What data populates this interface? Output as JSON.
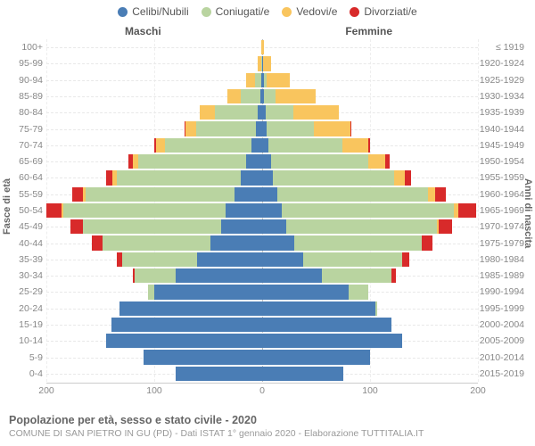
{
  "chart": {
    "type": "population-pyramid-stacked",
    "background_color": "#ffffff",
    "grid_color": "#e8e8e8",
    "center_line_color": "#bbbbbb",
    "axis_color": "#cccccc",
    "label_color": "#888888",
    "title_color": "#666666",
    "legend": [
      {
        "label": "Celibi/Nubili",
        "color": "#4a7db5"
      },
      {
        "label": "Coniugati/e",
        "color": "#b9d4a0"
      },
      {
        "label": "Vedovi/e",
        "color": "#f9c55e"
      },
      {
        "label": "Divorziati/e",
        "color": "#d82a2a"
      }
    ],
    "gender_labels": {
      "left": "Maschi",
      "right": "Femmine"
    },
    "y_axis_left_title": "Fasce di età",
    "y_axis_right_title": "Anni di nascita",
    "x_axis": {
      "max": 200,
      "ticks": [
        200,
        100,
        0,
        100,
        200
      ]
    },
    "caption_title": "Popolazione per età, sesso e stato civile - 2020",
    "caption_sub": "COMUNE DI SAN PIETRO IN GU (PD) - Dati ISTAT 1° gennaio 2020 - Elaborazione TUTTITALIA.IT",
    "age_bands": [
      "0-4",
      "5-9",
      "10-14",
      "15-19",
      "20-24",
      "25-29",
      "30-34",
      "35-39",
      "40-44",
      "45-49",
      "50-54",
      "55-59",
      "60-64",
      "65-69",
      "70-74",
      "75-79",
      "80-84",
      "85-89",
      "90-94",
      "95-99",
      "100+"
    ],
    "birth_bands": [
      "2015-2019",
      "2010-2014",
      "2005-2009",
      "2000-2004",
      "1995-1999",
      "1990-1994",
      "1985-1989",
      "1980-1984",
      "1975-1979",
      "1970-1974",
      "1965-1969",
      "1960-1964",
      "1955-1959",
      "1950-1954",
      "1945-1949",
      "1940-1944",
      "1935-1939",
      "1930-1934",
      "1925-1929",
      "1920-1924",
      "≤ 1919"
    ],
    "male": [
      {
        "single": 80,
        "married": 0,
        "widowed": 0,
        "divorced": 0
      },
      {
        "single": 110,
        "married": 0,
        "widowed": 0,
        "divorced": 0
      },
      {
        "single": 145,
        "married": 0,
        "widowed": 0,
        "divorced": 0
      },
      {
        "single": 140,
        "married": 0,
        "widowed": 0,
        "divorced": 0
      },
      {
        "single": 132,
        "married": 0,
        "widowed": 0,
        "divorced": 0
      },
      {
        "single": 100,
        "married": 6,
        "widowed": 0,
        "divorced": 0
      },
      {
        "single": 80,
        "married": 38,
        "widowed": 0,
        "divorced": 2
      },
      {
        "single": 60,
        "married": 70,
        "widowed": 0,
        "divorced": 5
      },
      {
        "single": 48,
        "married": 100,
        "widowed": 0,
        "divorced": 10
      },
      {
        "single": 38,
        "married": 128,
        "widowed": 0,
        "divorced": 12
      },
      {
        "single": 34,
        "married": 150,
        "widowed": 2,
        "divorced": 14
      },
      {
        "single": 26,
        "married": 138,
        "widowed": 2,
        "divorced": 10
      },
      {
        "single": 20,
        "married": 115,
        "widowed": 4,
        "divorced": 6
      },
      {
        "single": 15,
        "married": 100,
        "widowed": 5,
        "divorced": 4
      },
      {
        "single": 10,
        "married": 80,
        "widowed": 8,
        "divorced": 2
      },
      {
        "single": 6,
        "married": 55,
        "widowed": 10,
        "divorced": 1
      },
      {
        "single": 4,
        "married": 40,
        "widowed": 14,
        "divorced": 0
      },
      {
        "single": 2,
        "married": 18,
        "widowed": 12,
        "divorced": 0
      },
      {
        "single": 1,
        "married": 6,
        "widowed": 8,
        "divorced": 0
      },
      {
        "single": 0,
        "married": 1,
        "widowed": 3,
        "divorced": 0
      },
      {
        "single": 0,
        "married": 0,
        "widowed": 1,
        "divorced": 0
      }
    ],
    "female": [
      {
        "single": 75,
        "married": 0,
        "widowed": 0,
        "divorced": 0
      },
      {
        "single": 100,
        "married": 0,
        "widowed": 0,
        "divorced": 0
      },
      {
        "single": 130,
        "married": 0,
        "widowed": 0,
        "divorced": 0
      },
      {
        "single": 120,
        "married": 0,
        "widowed": 0,
        "divorced": 0
      },
      {
        "single": 105,
        "married": 2,
        "widowed": 0,
        "divorced": 0
      },
      {
        "single": 80,
        "married": 18,
        "widowed": 0,
        "divorced": 0
      },
      {
        "single": 55,
        "married": 65,
        "widowed": 0,
        "divorced": 4
      },
      {
        "single": 38,
        "married": 92,
        "widowed": 0,
        "divorced": 6
      },
      {
        "single": 30,
        "married": 118,
        "widowed": 0,
        "divorced": 10
      },
      {
        "single": 22,
        "married": 140,
        "widowed": 2,
        "divorced": 12
      },
      {
        "single": 18,
        "married": 160,
        "widowed": 4,
        "divorced": 16
      },
      {
        "single": 14,
        "married": 140,
        "widowed": 6,
        "divorced": 10
      },
      {
        "single": 10,
        "married": 112,
        "widowed": 10,
        "divorced": 6
      },
      {
        "single": 8,
        "married": 90,
        "widowed": 16,
        "divorced": 4
      },
      {
        "single": 6,
        "married": 68,
        "widowed": 24,
        "divorced": 2
      },
      {
        "single": 4,
        "married": 44,
        "widowed": 34,
        "divorced": 1
      },
      {
        "single": 3,
        "married": 26,
        "widowed": 42,
        "divorced": 0
      },
      {
        "single": 2,
        "married": 10,
        "widowed": 38,
        "divorced": 0
      },
      {
        "single": 2,
        "married": 2,
        "widowed": 22,
        "divorced": 0
      },
      {
        "single": 1,
        "married": 0,
        "widowed": 7,
        "divorced": 0
      },
      {
        "single": 0,
        "married": 0,
        "widowed": 2,
        "divorced": 0
      }
    ]
  }
}
